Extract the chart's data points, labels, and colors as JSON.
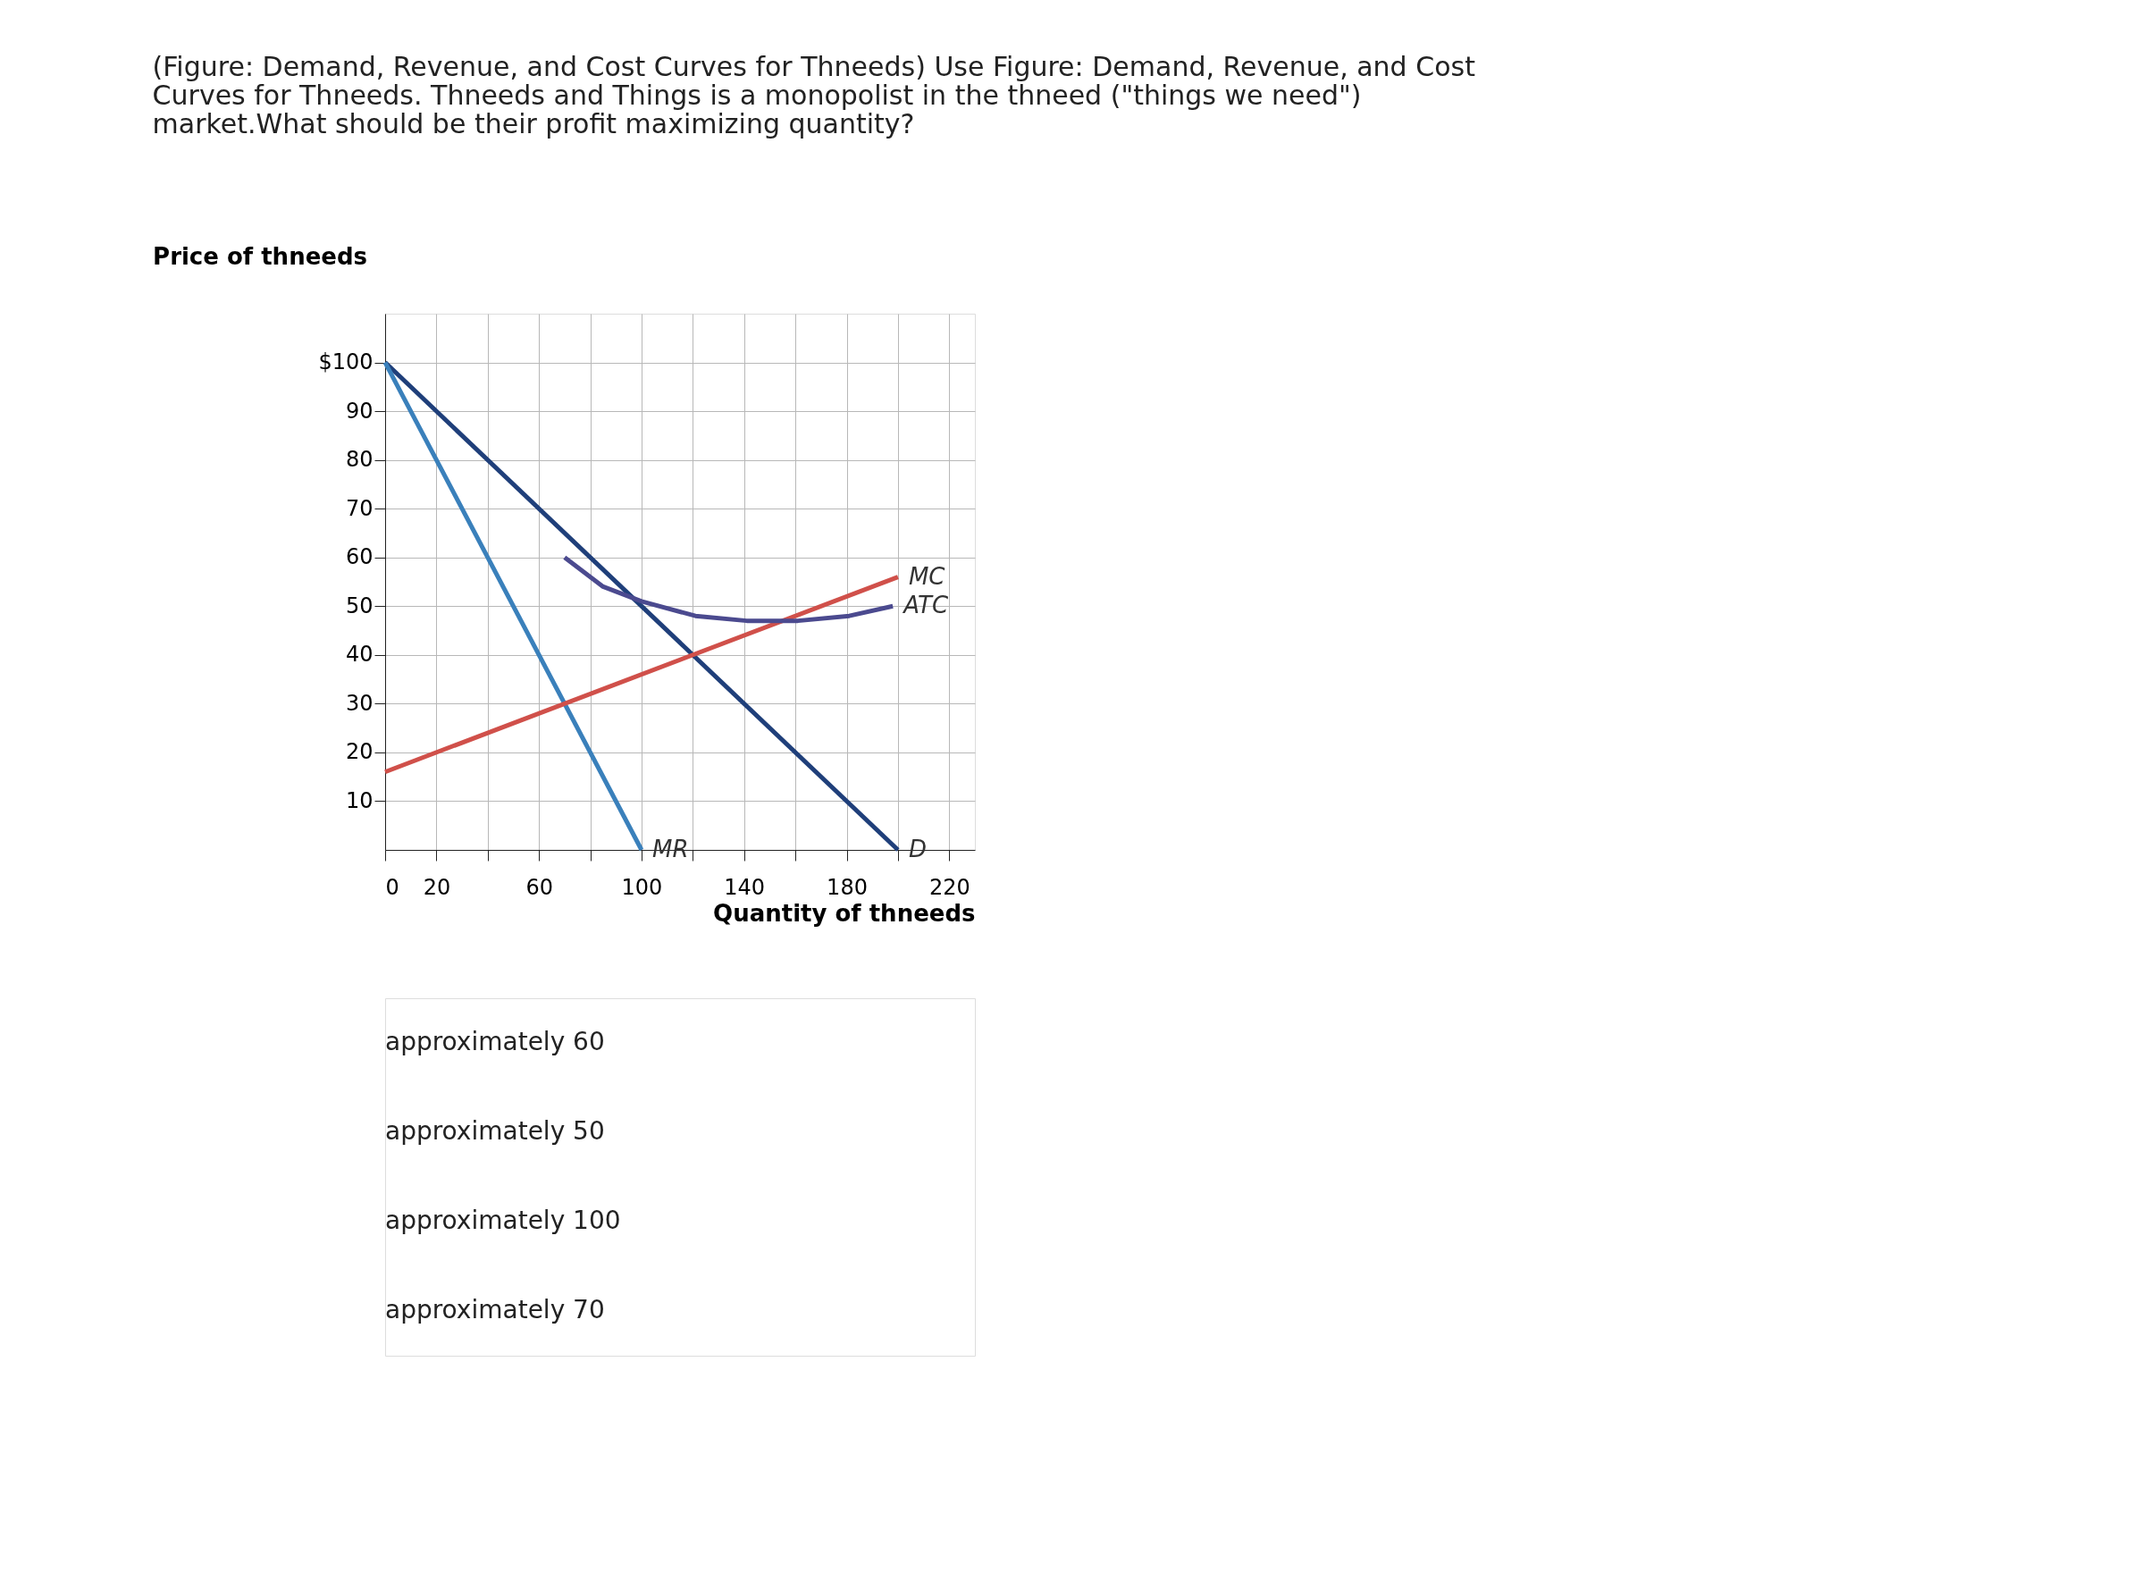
{
  "chart_data": {
    "type": "line",
    "title": "(Figure: Demand, Revenue, and Cost Curves for Thneeds) Use Figure: Demand, Revenue, and Cost Curves for Thneeds. Thneeds and Things is a monopolist in the thneed (\"things we need\") market.What should be their profit maximizing quantity?",
    "xlabel": "Quantity of thneeds",
    "ylabel": "Price of thneeds",
    "series": [
      {
        "name": "D",
        "color": "#1f3f7a",
        "x": [
          0,
          200
        ],
        "values": [
          100,
          0
        ]
      },
      {
        "name": "MR",
        "color": "#3a80bb",
        "x": [
          0,
          100
        ],
        "values": [
          100,
          0
        ]
      },
      {
        "name": "MC",
        "color": "#d0504a",
        "x": [
          0,
          200
        ],
        "values": [
          16,
          56
        ]
      },
      {
        "name": "ATC",
        "color": "#4b4a8f",
        "x": [
          70,
          85,
          100,
          121,
          141,
          161,
          181,
          198
        ],
        "values": [
          60,
          54,
          51,
          48,
          47,
          47,
          48,
          50
        ]
      }
    ],
    "xlim": [
      0,
      230
    ],
    "ylim": [
      0,
      110
    ],
    "xticks": [
      0,
      20,
      {
        "value": 40,
        "label": null
      },
      60,
      {
        "value": 80,
        "label": null
      },
      100,
      {
        "value": 120,
        "label": null
      },
      140,
      {
        "value": 160,
        "label": null
      },
      180,
      {
        "value": 200,
        "label": null
      },
      220
    ],
    "yticks": [
      10,
      20,
      30,
      40,
      50,
      60,
      70,
      80,
      90,
      {
        "value": 100,
        "label": "$100"
      }
    ],
    "grid": true,
    "legend": false,
    "marker": "none",
    "line_style": "solid",
    "annotations": [
      "approximately 60",
      "approximately 50",
      "approximately 100",
      "approximately 70"
    ]
  }
}
